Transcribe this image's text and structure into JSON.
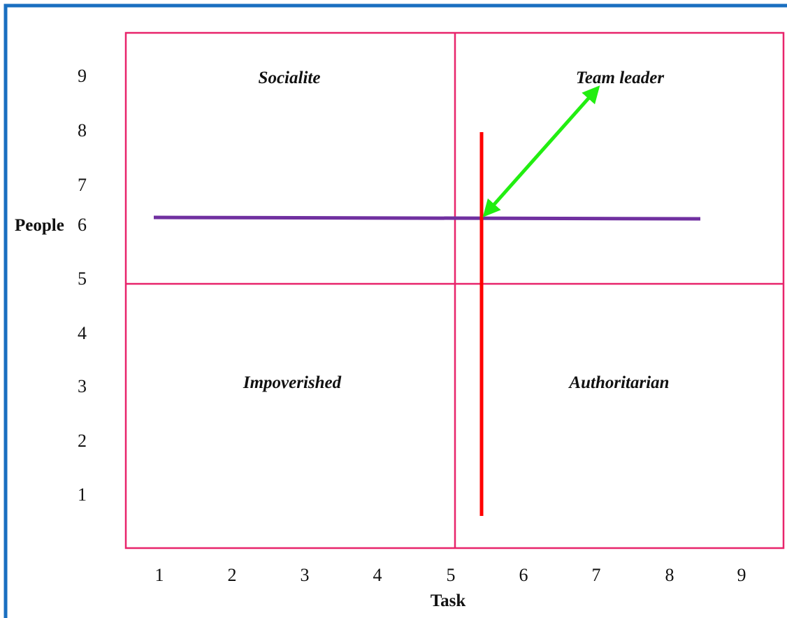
{
  "diagram": {
    "y_axis_label": "People",
    "x_axis_label": "Task",
    "y_ticks": [
      "9",
      "8",
      "7",
      "6",
      "5",
      "4",
      "3",
      "2",
      "1"
    ],
    "x_ticks": [
      "1",
      "2",
      "3",
      "4",
      "5",
      "6",
      "7",
      "8",
      "9"
    ],
    "quadrants": {
      "top_left": "Socialite",
      "top_right": "Team leader",
      "bottom_left": "Impoverished",
      "bottom_right": "Authoritarian"
    },
    "colors": {
      "frame_border": "#1a6fc0",
      "grid": "#e8246b",
      "people_line": "#7030a0",
      "task_line": "#ff0000",
      "arrow": "#22ee11"
    }
  }
}
